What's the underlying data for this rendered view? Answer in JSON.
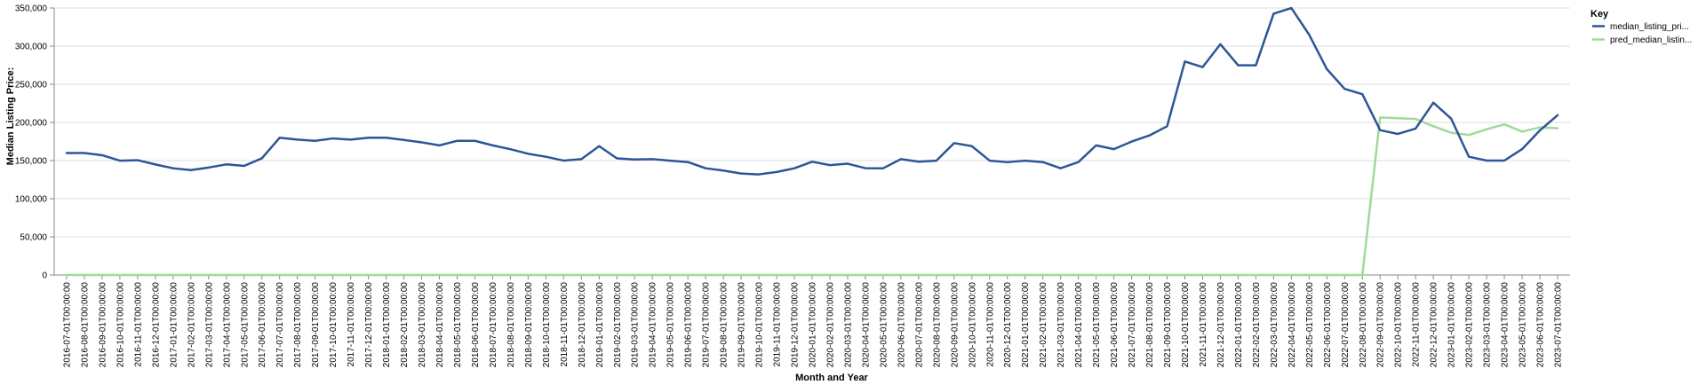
{
  "chart_data": {
    "type": "line",
    "xlabel": "Month and Year",
    "ylabel": "Median Listing Price:",
    "ylim": [
      0,
      350000
    ],
    "yticks": [
      "0",
      "50,000",
      "100,000",
      "150,000",
      "200,000",
      "250,000",
      "300,000",
      "350,000"
    ],
    "ytick_values": [
      0,
      50000,
      100000,
      150000,
      200000,
      250000,
      300000,
      350000
    ],
    "grid": true,
    "legend_title": "Key",
    "legend_position": "top-right",
    "x": [
      "2016-07-01T00:00:00",
      "2016-08-01T00:00:00",
      "2016-09-01T00:00:00",
      "2016-10-01T00:00:00",
      "2016-11-01T00:00:00",
      "2016-12-01T00:00:00",
      "2017-01-01T00:00:00",
      "2017-02-01T00:00:00",
      "2017-03-01T00:00:00",
      "2017-04-01T00:00:00",
      "2017-05-01T00:00:00",
      "2017-06-01T00:00:00",
      "2017-07-01T00:00:00",
      "2017-08-01T00:00:00",
      "2017-09-01T00:00:00",
      "2017-10-01T00:00:00",
      "2017-11-01T00:00:00",
      "2017-12-01T00:00:00",
      "2018-01-01T00:00:00",
      "2018-02-01T00:00:00",
      "2018-03-01T00:00:00",
      "2018-04-01T00:00:00",
      "2018-05-01T00:00:00",
      "2018-06-01T00:00:00",
      "2018-07-01T00:00:00",
      "2018-08-01T00:00:00",
      "2018-09-01T00:00:00",
      "2018-10-01T00:00:00",
      "2018-11-01T00:00:00",
      "2018-12-01T00:00:00",
      "2019-01-01T00:00:00",
      "2019-02-01T00:00:00",
      "2019-03-01T00:00:00",
      "2019-04-01T00:00:00",
      "2019-05-01T00:00:00",
      "2019-06-01T00:00:00",
      "2019-07-01T00:00:00",
      "2019-08-01T00:00:00",
      "2019-09-01T00:00:00",
      "2019-10-01T00:00:00",
      "2019-11-01T00:00:00",
      "2019-12-01T00:00:00",
      "2020-01-01T00:00:00",
      "2020-02-01T00:00:00",
      "2020-03-01T00:00:00",
      "2020-04-01T00:00:00",
      "2020-05-01T00:00:00",
      "2020-06-01T00:00:00",
      "2020-07-01T00:00:00",
      "2020-08-01T00:00:00",
      "2020-09-01T00:00:00",
      "2020-10-01T00:00:00",
      "2020-11-01T00:00:00",
      "2020-12-01T00:00:00",
      "2021-01-01T00:00:00",
      "2021-02-01T00:00:00",
      "2021-03-01T00:00:00",
      "2021-04-01T00:00:00",
      "2021-05-01T00:00:00",
      "2021-06-01T00:00:00",
      "2021-07-01T00:00:00",
      "2021-08-01T00:00:00",
      "2021-09-01T00:00:00",
      "2021-10-01T00:00:00",
      "2021-11-01T00:00:00",
      "2021-12-01T00:00:00",
      "2022-01-01T00:00:00",
      "2022-02-01T00:00:00",
      "2022-03-01T00:00:00",
      "2022-04-01T00:00:00",
      "2022-05-01T00:00:00",
      "2022-06-01T00:00:00",
      "2022-07-01T00:00:00",
      "2022-08-01T00:00:00",
      "2022-09-01T00:00:00",
      "2022-10-01T00:00:00",
      "2022-11-01T00:00:00",
      "2022-12-01T00:00:00",
      "2023-01-01T00:00:00",
      "2023-02-01T00:00:00",
      "2023-03-01T00:00:00",
      "2023-04-01T00:00:00",
      "2023-05-01T00:00:00",
      "2023-06-01T00:00:00",
      "2023-07-01T00:00:00"
    ],
    "series": [
      {
        "name": "median_listing_pri...",
        "color": "#2c5697",
        "values": [
          159900,
          159900,
          157000,
          149900,
          150500,
          144900,
          139900,
          137500,
          140900,
          145000,
          143000,
          153000,
          179900,
          177500,
          175900,
          179000,
          177500,
          179900,
          179900,
          177000,
          173900,
          169900,
          175900,
          175900,
          169900,
          164900,
          158900,
          155000,
          149900,
          151900,
          168900,
          152900,
          151500,
          151900,
          149900,
          148000,
          139900,
          136900,
          133000,
          131900,
          135000,
          139900,
          148500,
          144000,
          145900,
          140000,
          139900,
          151900,
          148500,
          149900,
          172900,
          168900,
          149900,
          147900,
          149900,
          148000,
          139900,
          148000,
          169900,
          165000,
          174900,
          182900,
          195000,
          279900,
          272500,
          302500,
          274900,
          274900,
          342500,
          349900,
          315000,
          269900,
          244000,
          237000,
          189900,
          184900,
          191900,
          225900,
          205000,
          155000,
          150000,
          150000,
          165000,
          189500,
          209500
        ]
      },
      {
        "name": "pred_median_listin...",
        "color": "#a1d99b",
        "values": [
          0,
          0,
          0,
          0,
          0,
          0,
          0,
          0,
          0,
          0,
          0,
          0,
          0,
          0,
          0,
          0,
          0,
          0,
          0,
          0,
          0,
          0,
          0,
          0,
          0,
          0,
          0,
          0,
          0,
          0,
          0,
          0,
          0,
          0,
          0,
          0,
          0,
          0,
          0,
          0,
          0,
          0,
          0,
          0,
          0,
          0,
          0,
          0,
          0,
          0,
          0,
          0,
          0,
          0,
          0,
          0,
          0,
          0,
          0,
          0,
          0,
          0,
          0,
          0,
          0,
          0,
          0,
          0,
          0,
          0,
          0,
          0,
          0,
          0,
          206500,
          205500,
          204500,
          195000,
          186500,
          183500,
          191000,
          197500,
          188000,
          193500,
          192500
        ]
      }
    ]
  }
}
